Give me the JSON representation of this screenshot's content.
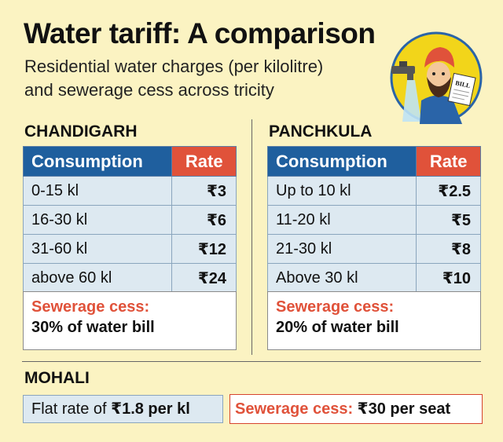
{
  "title": "Water tariff: A comparison",
  "subtitle": {
    "line1": "Residential water charges (per kilolitre)",
    "line2": "and sewerage cess across tricity"
  },
  "illustration": {
    "bill_text": "BILL",
    "icon": "man-with-bill-and-tap-icon"
  },
  "chandigarh": {
    "label": "CHANDIGARH",
    "headers": {
      "consumption": "Consumption",
      "rate": "Rate"
    },
    "rows": [
      {
        "consumption": "0-15 kl",
        "rate": "₹3"
      },
      {
        "consumption": "16-30 kl",
        "rate": "₹6"
      },
      {
        "consumption": "31-60 kl",
        "rate": "₹12"
      },
      {
        "consumption": "above 60 kl",
        "rate": "₹24"
      }
    ],
    "cess_label": "Sewerage cess:",
    "cess_value": "30% of water bill"
  },
  "panchkula": {
    "label": "PANCHKULA",
    "headers": {
      "consumption": "Consumption",
      "rate": "Rate"
    },
    "rows": [
      {
        "consumption": "Up to 10 kl",
        "rate": "₹2.5"
      },
      {
        "consumption": "11-20 kl",
        "rate": "₹5"
      },
      {
        "consumption": "21-30 kl",
        "rate": "₹8"
      },
      {
        "consumption": "Above 30 kl",
        "rate": "₹10"
      }
    ],
    "cess_label": "Sewerage cess:",
    "cess_value": "20% of water bill"
  },
  "mohali": {
    "label": "MOHALI",
    "flat_prefix": "Flat rate of ",
    "flat_value": "₹1.8 per kl",
    "cess_label": "Sewerage cess:",
    "cess_value": "₹30 per seat"
  },
  "colors": {
    "background": "#fbf3c2",
    "header_blue": "#1f5f9e",
    "header_red": "#e0523a",
    "cell_blue": "#dde9f1"
  }
}
